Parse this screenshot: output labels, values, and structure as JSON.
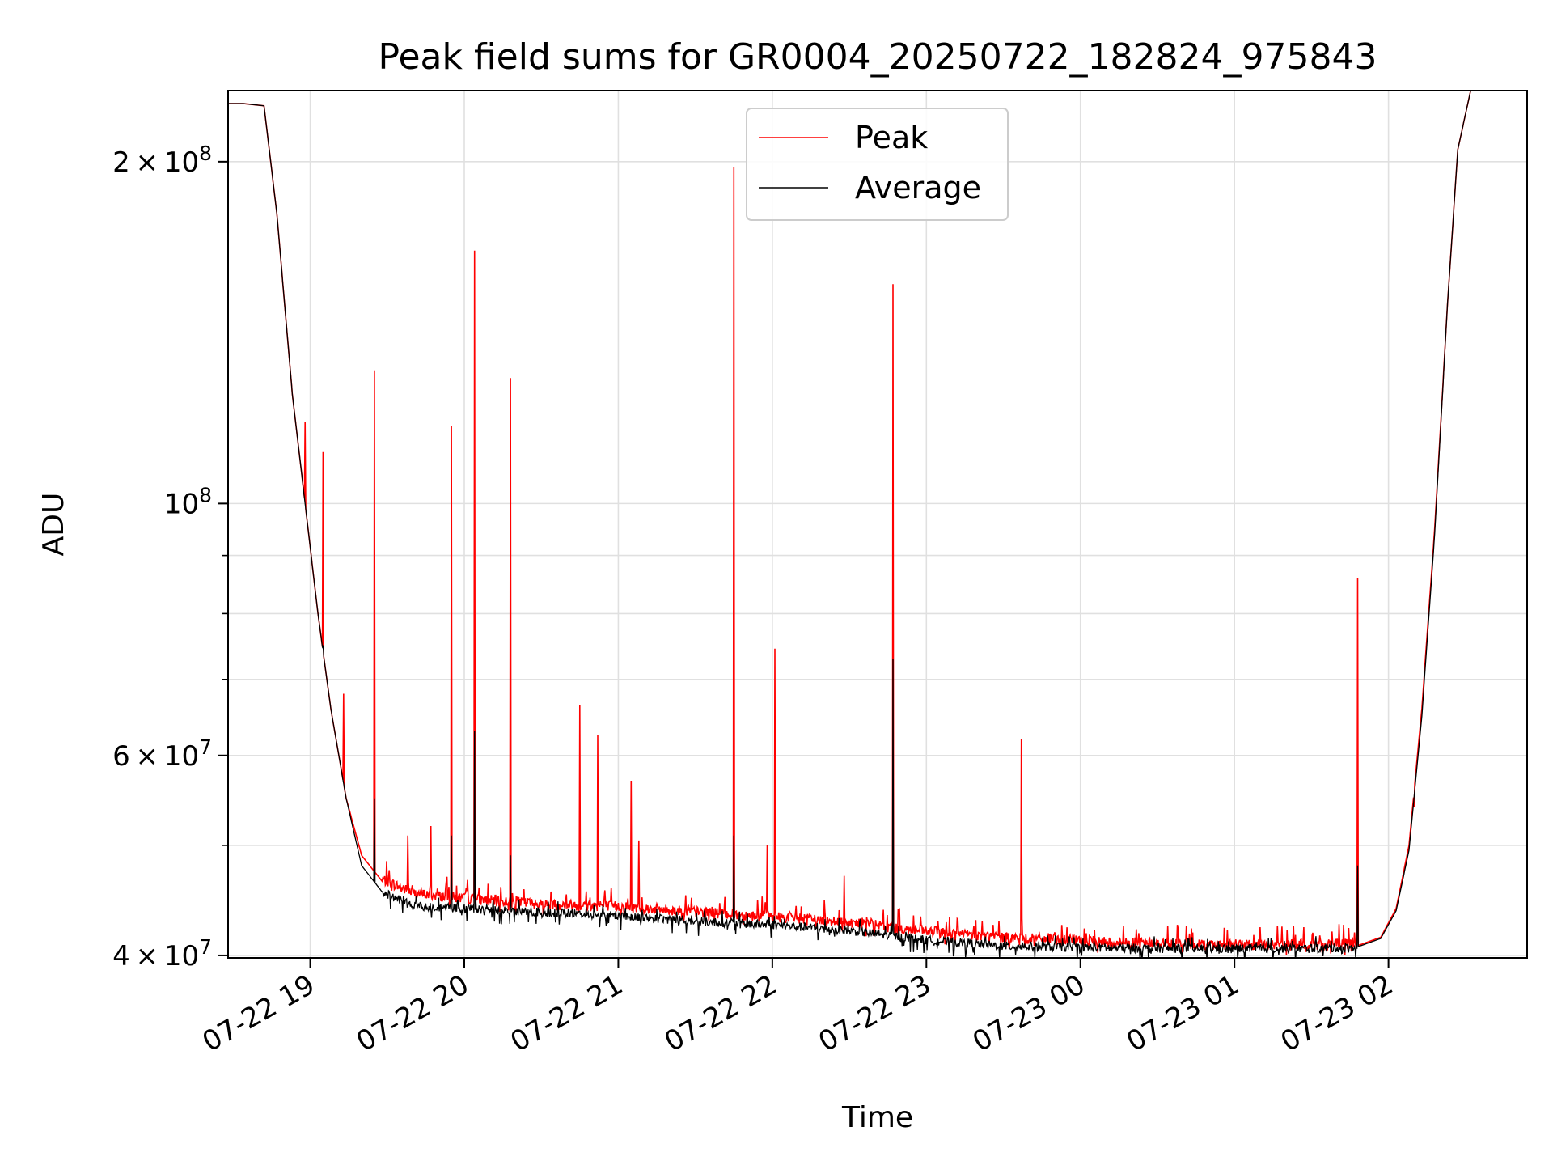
{
  "chart_data": {
    "type": "line",
    "title": "Peak field sums for GR0004_20250722_182824_975843",
    "xlabel": "Time",
    "ylabel": "ADU",
    "yscale": "log",
    "ylim": [
      39800000,
      231000000
    ],
    "xlim": [
      "2025-07-22 18:28",
      "2025-07-23 02:54"
    ],
    "grid": true,
    "legend_position": "top-center",
    "x_ticks": [
      "07-22 19",
      "07-22 20",
      "07-22 21",
      "07-22 22",
      "07-22 23",
      "07-23 00",
      "07-23 01",
      "07-23 02"
    ],
    "y_ticks": [
      {
        "value": 40000000,
        "mantissa": "4",
        "exponent": "7"
      },
      {
        "value": 60000000,
        "mantissa": "6",
        "exponent": "7"
      },
      {
        "value": 100000000,
        "mantissa": "",
        "exponent": "8"
      },
      {
        "value": 200000000,
        "mantissa": "2",
        "exponent": "8"
      }
    ],
    "y_minor_ticks": [
      50000000,
      70000000,
      80000000,
      90000000
    ],
    "series": [
      {
        "name": "Peak",
        "color": "#ff0000",
        "baseline": [
          [
            "2025-07-22 18:28",
            225000000
          ],
          [
            "2025-07-22 18:34",
            225000000
          ],
          [
            "2025-07-22 18:42",
            224000000
          ],
          [
            "2025-07-22 18:47",
            180000000
          ],
          [
            "2025-07-22 18:53",
            125000000
          ],
          [
            "2025-07-22 18:58",
            100000000
          ],
          [
            "2025-07-22 19:03",
            80000000
          ],
          [
            "2025-07-22 19:08",
            66000000
          ],
          [
            "2025-07-22 19:14",
            55000000
          ],
          [
            "2025-07-22 19:20",
            49000000
          ],
          [
            "2025-07-22 19:28",
            46500000
          ],
          [
            "2025-07-22 19:40",
            45200000
          ],
          [
            "2025-07-22 20:00",
            44700000
          ],
          [
            "2025-07-22 20:30",
            44200000
          ],
          [
            "2025-07-22 21:00",
            44000000
          ],
          [
            "2025-07-22 21:30",
            43500000
          ],
          [
            "2025-07-22 22:00",
            43100000
          ],
          [
            "2025-07-22 22:30",
            42600000
          ],
          [
            "2025-07-22 23:00",
            41800000
          ],
          [
            "2025-07-22 23:30",
            41300000
          ],
          [
            "2025-07-23 00:00",
            41000000
          ],
          [
            "2025-07-23 00:30",
            40800000
          ],
          [
            "2025-07-23 01:00",
            40700000
          ],
          [
            "2025-07-23 01:30",
            40700000
          ],
          [
            "2025-07-23 01:48",
            40800000
          ],
          [
            "2025-07-23 01:57",
            41500000
          ],
          [
            "2025-07-23 02:03",
            44000000
          ],
          [
            "2025-07-23 02:08",
            50000000
          ],
          [
            "2025-07-23 02:13",
            66000000
          ],
          [
            "2025-07-23 02:18",
            95000000
          ],
          [
            "2025-07-23 02:23",
            150000000
          ],
          [
            "2025-07-23 02:27",
            205000000
          ],
          [
            "2025-07-23 02:32",
            231000000
          ]
        ],
        "spikes": [
          [
            "2025-07-22 18:58",
            118000000
          ],
          [
            "2025-07-22 19:05",
            111000000
          ],
          [
            "2025-07-22 19:13",
            68000000
          ],
          [
            "2025-07-22 19:25",
            131000000
          ],
          [
            "2025-07-22 19:38",
            51000000
          ],
          [
            "2025-07-22 19:47",
            52000000
          ],
          [
            "2025-07-22 19:55",
            117000000
          ],
          [
            "2025-07-22 20:04",
            167000000
          ],
          [
            "2025-07-22 20:18",
            129000000
          ],
          [
            "2025-07-22 20:45",
            66500000
          ],
          [
            "2025-07-22 20:52",
            62500000
          ],
          [
            "2025-07-22 21:05",
            57000000
          ],
          [
            "2025-07-22 21:08",
            50500000
          ],
          [
            "2025-07-22 21:45",
            198000000
          ],
          [
            "2025-07-22 21:58",
            50000000
          ],
          [
            "2025-07-22 22:01",
            74500000
          ],
          [
            "2025-07-22 22:28",
            47000000
          ],
          [
            "2025-07-22 22:47",
            156000000
          ],
          [
            "2025-07-22 23:37",
            62000000
          ],
          [
            "2025-07-23 01:48",
            86000000
          ],
          [
            "2025-07-23 02:10",
            54000000
          ]
        ]
      },
      {
        "name": "Average",
        "color": "#000000",
        "baseline": [
          [
            "2025-07-22 18:28",
            225000000
          ],
          [
            "2025-07-22 18:34",
            225000000
          ],
          [
            "2025-07-22 18:42",
            224000000
          ],
          [
            "2025-07-22 18:47",
            180000000
          ],
          [
            "2025-07-22 18:53",
            125000000
          ],
          [
            "2025-07-22 18:58",
            100000000
          ],
          [
            "2025-07-22 19:03",
            80000000
          ],
          [
            "2025-07-22 19:08",
            66000000
          ],
          [
            "2025-07-22 19:14",
            55000000
          ],
          [
            "2025-07-22 19:20",
            48000000
          ],
          [
            "2025-07-22 19:28",
            45500000
          ],
          [
            "2025-07-22 19:40",
            44300000
          ],
          [
            "2025-07-22 20:00",
            44000000
          ],
          [
            "2025-07-22 20:30",
            43700000
          ],
          [
            "2025-07-22 21:00",
            43400000
          ],
          [
            "2025-07-22 21:30",
            42900000
          ],
          [
            "2025-07-22 22:00",
            42600000
          ],
          [
            "2025-07-22 22:30",
            42100000
          ],
          [
            "2025-07-22 23:00",
            41300000
          ],
          [
            "2025-07-22 23:30",
            40800000
          ],
          [
            "2025-07-23 00:00",
            40700000
          ],
          [
            "2025-07-23 00:30",
            40600000
          ],
          [
            "2025-07-23 01:00",
            40600000
          ],
          [
            "2025-07-23 01:30",
            40600000
          ],
          [
            "2025-07-23 01:48",
            40700000
          ],
          [
            "2025-07-23 01:57",
            41400000
          ],
          [
            "2025-07-23 02:03",
            43800000
          ],
          [
            "2025-07-23 02:08",
            49500000
          ],
          [
            "2025-07-23 02:13",
            65000000
          ],
          [
            "2025-07-23 02:18",
            94000000
          ],
          [
            "2025-07-23 02:23",
            150000000
          ],
          [
            "2025-07-23 02:27",
            205000000
          ],
          [
            "2025-07-23 02:32",
            231000000
          ]
        ],
        "spikes": [
          [
            "2025-07-22 19:05",
            75000000
          ],
          [
            "2025-07-22 19:25",
            55000000
          ],
          [
            "2025-07-22 19:55",
            51000000
          ],
          [
            "2025-07-22 20:04",
            63000000
          ],
          [
            "2025-07-22 20:18",
            49000000
          ],
          [
            "2025-07-22 21:45",
            51000000
          ],
          [
            "2025-07-22 22:47",
            73000000
          ],
          [
            "2025-07-23 01:48",
            48000000
          ]
        ]
      }
    ]
  }
}
